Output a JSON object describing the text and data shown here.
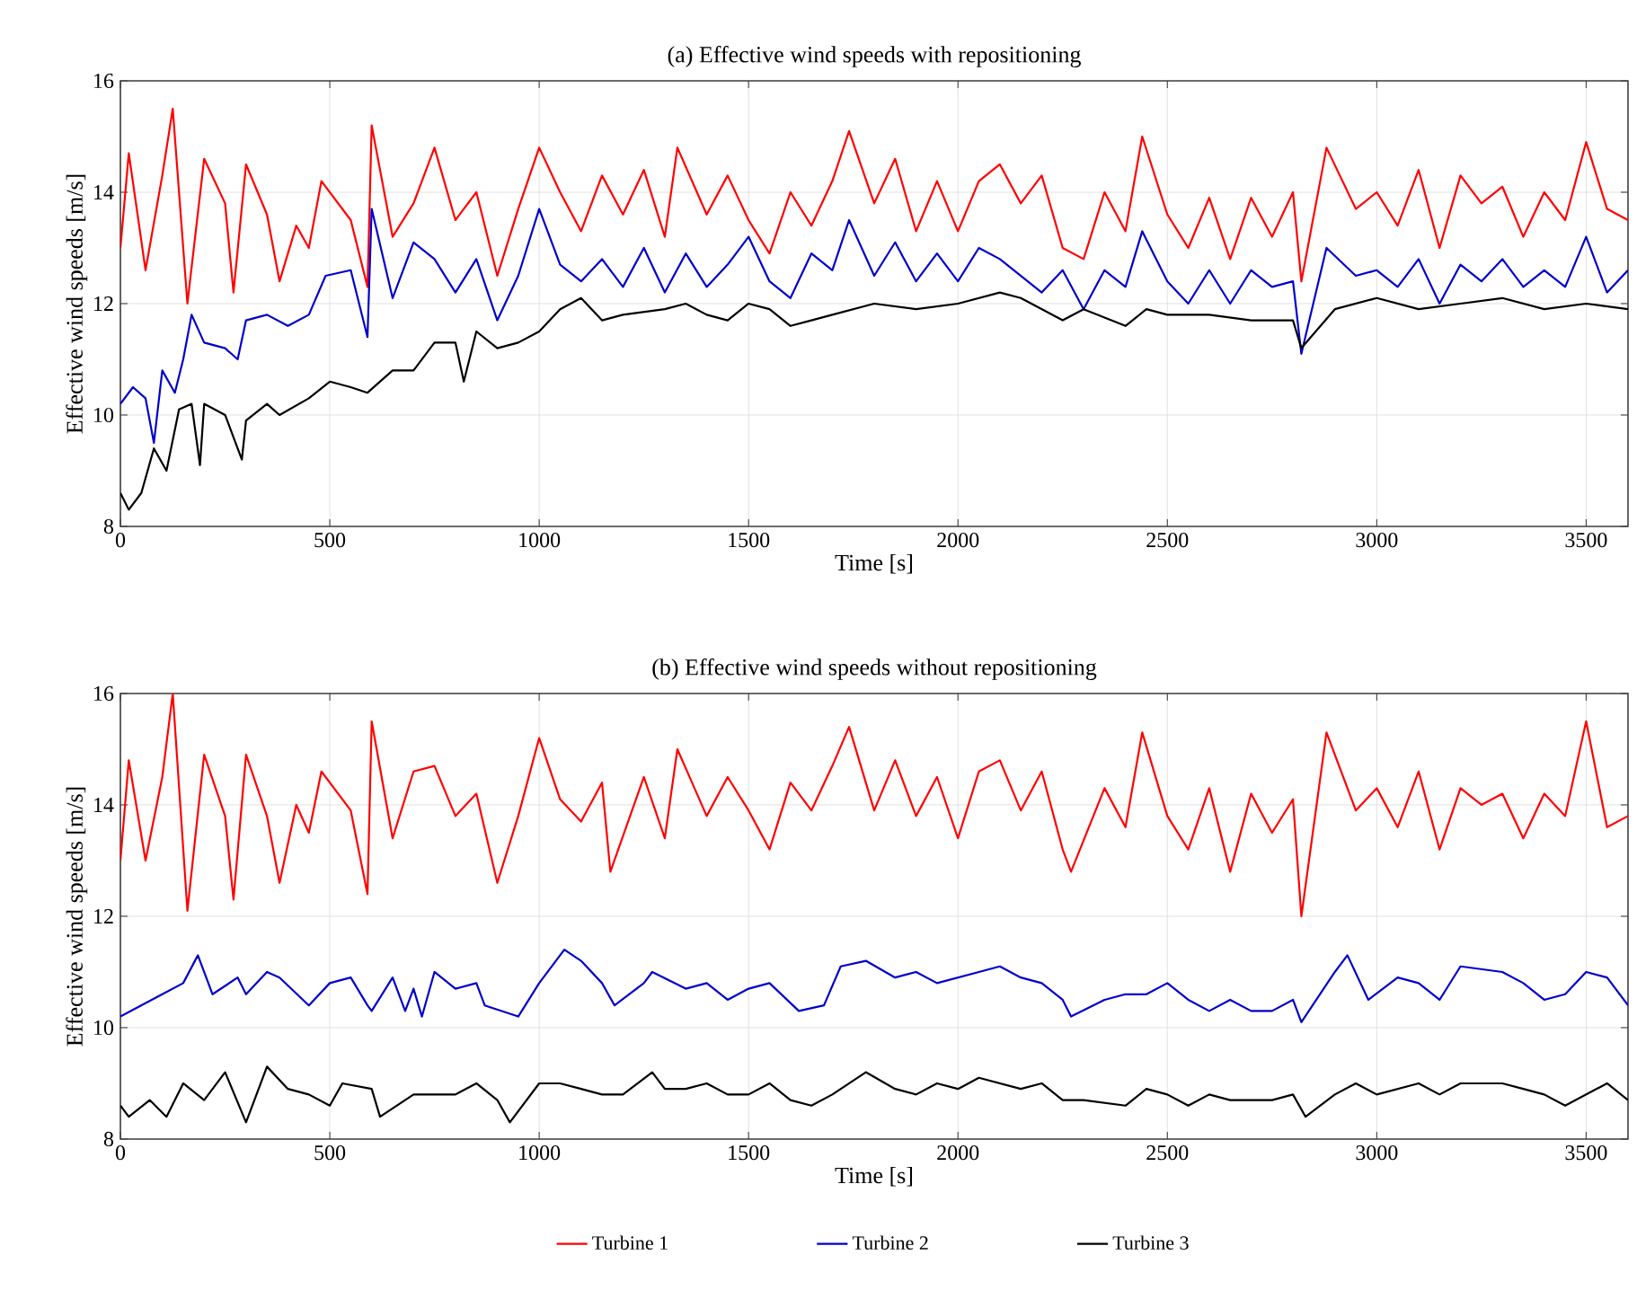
{
  "chart_data": [
    {
      "type": "line",
      "title": "(a) Effective wind speeds with repositioning",
      "xlabel": "Time [s]",
      "ylabel": "Effective wind speeds [m/s]",
      "xlim": [
        0,
        3600
      ],
      "ylim": [
        8,
        16
      ],
      "xticks": [
        0,
        500,
        1000,
        1500,
        2000,
        2500,
        3000,
        3500
      ],
      "yticks": [
        8,
        10,
        12,
        14,
        16
      ],
      "grid": true,
      "legend": false,
      "line_style": "solid",
      "series": [
        {
          "color": "#ff0000",
          "x": [
            0,
            20,
            60,
            100,
            125,
            160,
            200,
            250,
            270,
            300,
            350,
            380,
            420,
            450,
            480,
            550,
            590,
            600,
            650,
            700,
            750,
            800,
            850,
            900,
            950,
            1000,
            1050,
            1100,
            1150,
            1200,
            1250,
            1300,
            1330,
            1400,
            1450,
            1500,
            1550,
            1600,
            1650,
            1700,
            1740,
            1800,
            1850,
            1900,
            1950,
            2000,
            2050,
            2100,
            2150,
            2200,
            2250,
            2300,
            2350,
            2400,
            2440,
            2500,
            2550,
            2600,
            2650,
            2700,
            2750,
            2800,
            2820,
            2880,
            2950,
            3000,
            3050,
            3100,
            3150,
            3200,
            3250,
            3300,
            3350,
            3400,
            3450,
            3500,
            3550,
            3600
          ],
          "values": [
            13.0,
            14.7,
            12.6,
            14.3,
            15.5,
            12.0,
            14.6,
            13.8,
            12.2,
            14.5,
            13.6,
            12.4,
            13.4,
            13.0,
            14.2,
            13.5,
            12.3,
            15.2,
            13.2,
            13.8,
            14.8,
            13.5,
            14.0,
            12.5,
            13.7,
            14.8,
            14.0,
            13.3,
            14.3,
            13.6,
            14.4,
            13.2,
            14.8,
            13.6,
            14.3,
            13.5,
            12.9,
            14.0,
            13.4,
            14.2,
            15.1,
            13.8,
            14.6,
            13.3,
            14.2,
            13.3,
            14.2,
            14.5,
            13.8,
            14.3,
            13.0,
            12.8,
            14.0,
            13.3,
            15.0,
            13.6,
            13.0,
            13.9,
            12.8,
            13.9,
            13.2,
            14.0,
            12.4,
            14.8,
            13.7,
            14.0,
            13.4,
            14.4,
            13.0,
            14.3,
            13.8,
            14.1,
            13.2,
            14.0,
            13.5,
            14.9,
            13.7,
            13.5
          ]
        },
        {
          "color": "#0000cc",
          "x": [
            0,
            30,
            60,
            80,
            100,
            130,
            150,
            170,
            200,
            250,
            280,
            300,
            350,
            400,
            450,
            490,
            550,
            590,
            600,
            650,
            700,
            750,
            800,
            850,
            900,
            950,
            1000,
            1050,
            1100,
            1150,
            1200,
            1250,
            1300,
            1350,
            1400,
            1450,
            1500,
            1550,
            1600,
            1650,
            1700,
            1740,
            1800,
            1850,
            1900,
            1950,
            2000,
            2050,
            2100,
            2150,
            2200,
            2250,
            2300,
            2350,
            2400,
            2440,
            2500,
            2550,
            2600,
            2650,
            2700,
            2750,
            2800,
            2820,
            2880,
            2950,
            3000,
            3050,
            3100,
            3150,
            3200,
            3250,
            3300,
            3350,
            3400,
            3450,
            3500,
            3550,
            3600
          ],
          "values": [
            10.2,
            10.5,
            10.3,
            9.5,
            10.8,
            10.4,
            11.0,
            11.8,
            11.3,
            11.2,
            11.0,
            11.7,
            11.8,
            11.6,
            11.8,
            12.5,
            12.6,
            11.4,
            13.7,
            12.1,
            13.1,
            12.8,
            12.2,
            12.8,
            11.7,
            12.5,
            13.7,
            12.7,
            12.4,
            12.8,
            12.3,
            13.0,
            12.2,
            12.9,
            12.3,
            12.7,
            13.2,
            12.4,
            12.1,
            12.9,
            12.6,
            13.5,
            12.5,
            13.1,
            12.4,
            12.9,
            12.4,
            13.0,
            12.8,
            12.5,
            12.2,
            12.6,
            11.9,
            12.6,
            12.3,
            13.3,
            12.4,
            12.0,
            12.6,
            12.0,
            12.6,
            12.3,
            12.4,
            11.1,
            13.0,
            12.5,
            12.6,
            12.3,
            12.8,
            12.0,
            12.7,
            12.4,
            12.8,
            12.3,
            12.6,
            12.3,
            13.2,
            12.2,
            12.6
          ]
        },
        {
          "color": "#000000",
          "x": [
            0,
            20,
            50,
            80,
            110,
            140,
            170,
            190,
            200,
            250,
            290,
            300,
            350,
            380,
            450,
            500,
            550,
            590,
            650,
            700,
            750,
            800,
            820,
            850,
            900,
            950,
            1000,
            1050,
            1100,
            1150,
            1200,
            1300,
            1350,
            1400,
            1450,
            1500,
            1550,
            1600,
            1650,
            1700,
            1800,
            1900,
            2000,
            2100,
            2150,
            2200,
            2250,
            2300,
            2400,
            2450,
            2500,
            2600,
            2700,
            2800,
            2820,
            2900,
            3000,
            3100,
            3200,
            3300,
            3400,
            3500,
            3600
          ],
          "values": [
            8.6,
            8.3,
            8.6,
            9.4,
            9.0,
            10.1,
            10.2,
            9.1,
            10.2,
            10.0,
            9.2,
            9.9,
            10.2,
            10.0,
            10.3,
            10.6,
            10.5,
            10.4,
            10.8,
            10.8,
            11.3,
            11.3,
            10.6,
            11.5,
            11.2,
            11.3,
            11.5,
            11.9,
            12.1,
            11.7,
            11.8,
            11.9,
            12.0,
            11.8,
            11.7,
            12.0,
            11.9,
            11.6,
            11.7,
            11.8,
            12.0,
            11.9,
            12.0,
            12.2,
            12.1,
            11.9,
            11.7,
            11.9,
            11.6,
            11.9,
            11.8,
            11.8,
            11.7,
            11.7,
            11.2,
            11.9,
            12.1,
            11.9,
            12.0,
            12.1,
            11.9,
            12.0,
            11.9
          ]
        }
      ]
    },
    {
      "type": "line",
      "title": "(b) Effective wind speeds without repositioning",
      "xlabel": "Time [s]",
      "ylabel": "Effective wind speeds [m/s]",
      "xlim": [
        0,
        3600
      ],
      "ylim": [
        8,
        16
      ],
      "xticks": [
        0,
        500,
        1000,
        1500,
        2000,
        2500,
        3000,
        3500
      ],
      "yticks": [
        8,
        10,
        12,
        14,
        16
      ],
      "grid": true,
      "legend": "bottom",
      "line_style": "solid",
      "series": [
        {
          "name": "Turbine 1",
          "color": "#ff0000",
          "x": [
            0,
            20,
            60,
            100,
            125,
            160,
            200,
            250,
            270,
            300,
            350,
            380,
            420,
            450,
            480,
            550,
            590,
            600,
            650,
            700,
            750,
            800,
            850,
            900,
            950,
            1000,
            1050,
            1100,
            1150,
            1170,
            1250,
            1300,
            1330,
            1400,
            1450,
            1500,
            1550,
            1600,
            1650,
            1700,
            1740,
            1800,
            1850,
            1900,
            1950,
            2000,
            2050,
            2100,
            2150,
            2200,
            2250,
            2270,
            2350,
            2400,
            2440,
            2500,
            2550,
            2600,
            2650,
            2700,
            2750,
            2800,
            2820,
            2880,
            2950,
            3000,
            3050,
            3100,
            3150,
            3200,
            3250,
            3300,
            3350,
            3400,
            3450,
            3500,
            3550,
            3600
          ],
          "values": [
            13.0,
            14.8,
            13.0,
            14.5,
            16.0,
            12.1,
            14.9,
            13.8,
            12.3,
            14.9,
            13.8,
            12.6,
            14.0,
            13.5,
            14.6,
            13.9,
            12.4,
            15.5,
            13.4,
            14.6,
            14.7,
            13.8,
            14.2,
            12.6,
            13.8,
            15.2,
            14.1,
            13.7,
            14.4,
            12.8,
            14.5,
            13.4,
            15.0,
            13.8,
            14.5,
            13.9,
            13.2,
            14.4,
            13.9,
            14.7,
            15.4,
            13.9,
            14.8,
            13.8,
            14.5,
            13.4,
            14.6,
            14.8,
            13.9,
            14.6,
            13.2,
            12.8,
            14.3,
            13.6,
            15.3,
            13.8,
            13.2,
            14.3,
            12.8,
            14.2,
            13.5,
            14.1,
            12.0,
            15.3,
            13.9,
            14.3,
            13.6,
            14.6,
            13.2,
            14.3,
            14.0,
            14.2,
            13.4,
            14.2,
            13.8,
            15.5,
            13.6,
            13.8
          ]
        },
        {
          "name": "Turbine 2",
          "color": "#0000cc",
          "x": [
            0,
            50,
            100,
            150,
            185,
            220,
            280,
            300,
            350,
            380,
            450,
            500,
            550,
            590,
            600,
            650,
            680,
            700,
            720,
            750,
            800,
            850,
            870,
            950,
            1000,
            1060,
            1100,
            1150,
            1180,
            1250,
            1270,
            1350,
            1400,
            1450,
            1500,
            1550,
            1620,
            1680,
            1720,
            1780,
            1850,
            1900,
            1950,
            2050,
            2100,
            2150,
            2200,
            2250,
            2270,
            2350,
            2400,
            2450,
            2500,
            2550,
            2600,
            2650,
            2700,
            2750,
            2800,
            2820,
            2900,
            2930,
            2980,
            3050,
            3100,
            3150,
            3200,
            3300,
            3350,
            3400,
            3450,
            3500,
            3550,
            3600
          ],
          "values": [
            10.2,
            10.4,
            10.6,
            10.8,
            11.3,
            10.6,
            10.9,
            10.6,
            11.0,
            10.9,
            10.4,
            10.8,
            10.9,
            10.4,
            10.3,
            10.9,
            10.3,
            10.7,
            10.2,
            11.0,
            10.7,
            10.8,
            10.4,
            10.2,
            10.8,
            11.4,
            11.2,
            10.8,
            10.4,
            10.8,
            11.0,
            10.7,
            10.8,
            10.5,
            10.7,
            10.8,
            10.3,
            10.4,
            11.1,
            11.2,
            10.9,
            11.0,
            10.8,
            11.0,
            11.1,
            10.9,
            10.8,
            10.5,
            10.2,
            10.5,
            10.6,
            10.6,
            10.8,
            10.5,
            10.3,
            10.5,
            10.3,
            10.3,
            10.5,
            10.1,
            11.0,
            11.3,
            10.5,
            10.9,
            10.8,
            10.5,
            11.1,
            11.0,
            10.8,
            10.5,
            10.6,
            11.0,
            10.9,
            10.4
          ]
        },
        {
          "name": "Turbine 3",
          "color": "#000000",
          "x": [
            0,
            20,
            70,
            110,
            150,
            200,
            250,
            300,
            350,
            400,
            450,
            500,
            530,
            600,
            620,
            700,
            750,
            800,
            850,
            900,
            930,
            1000,
            1050,
            1100,
            1150,
            1200,
            1270,
            1300,
            1350,
            1400,
            1450,
            1500,
            1550,
            1600,
            1650,
            1700,
            1780,
            1850,
            1900,
            1950,
            2000,
            2050,
            2100,
            2150,
            2200,
            2250,
            2300,
            2400,
            2450,
            2500,
            2550,
            2600,
            2650,
            2700,
            2750,
            2800,
            2830,
            2900,
            2950,
            3000,
            3100,
            3150,
            3200,
            3300,
            3350,
            3400,
            3450,
            3500,
            3550,
            3600
          ],
          "values": [
            8.6,
            8.4,
            8.7,
            8.4,
            9.0,
            8.7,
            9.2,
            8.3,
            9.3,
            8.9,
            8.8,
            8.6,
            9.0,
            8.9,
            8.4,
            8.8,
            8.8,
            8.8,
            9.0,
            8.7,
            8.3,
            9.0,
            9.0,
            8.9,
            8.8,
            8.8,
            9.2,
            8.9,
            8.9,
            9.0,
            8.8,
            8.8,
            9.0,
            8.7,
            8.6,
            8.8,
            9.2,
            8.9,
            8.8,
            9.0,
            8.9,
            9.1,
            9.0,
            8.9,
            9.0,
            8.7,
            8.7,
            8.6,
            8.9,
            8.8,
            8.6,
            8.8,
            8.7,
            8.7,
            8.7,
            8.8,
            8.4,
            8.8,
            9.0,
            8.8,
            9.0,
            8.8,
            9.0,
            9.0,
            8.9,
            8.8,
            8.6,
            8.8,
            9.0,
            8.7
          ]
        }
      ]
    }
  ]
}
